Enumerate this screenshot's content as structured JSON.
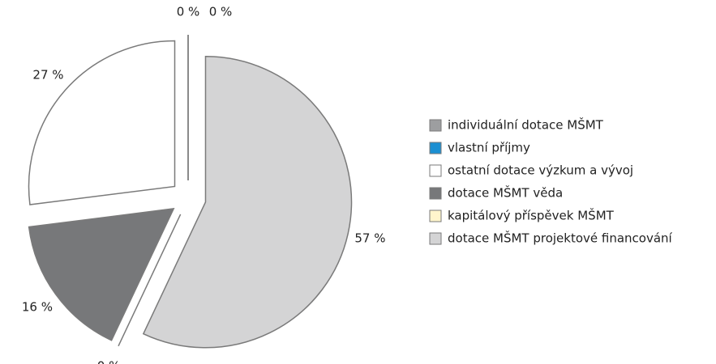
{
  "chart_data": {
    "type": "pie",
    "categories": [
      "individuální dotace MŠMT",
      "vlastní příjmy",
      "ostatní dotace výzkum a vývoj",
      "dotace MŠMT věda",
      "kapitálový příspěvek MŠMT",
      "dotace MŠMT projektové financování"
    ],
    "values": [
      0,
      0,
      27,
      16,
      0,
      57
    ],
    "value_labels": [
      "0 %",
      "0 %",
      "27 %",
      "16 %",
      "0 %",
      "57 %"
    ],
    "colors": [
      "#9d9ea0",
      "#1b8fd2",
      "#ffffff",
      "#77787a",
      "#fff5cc",
      "#d4d4d5"
    ],
    "legend": "right"
  }
}
